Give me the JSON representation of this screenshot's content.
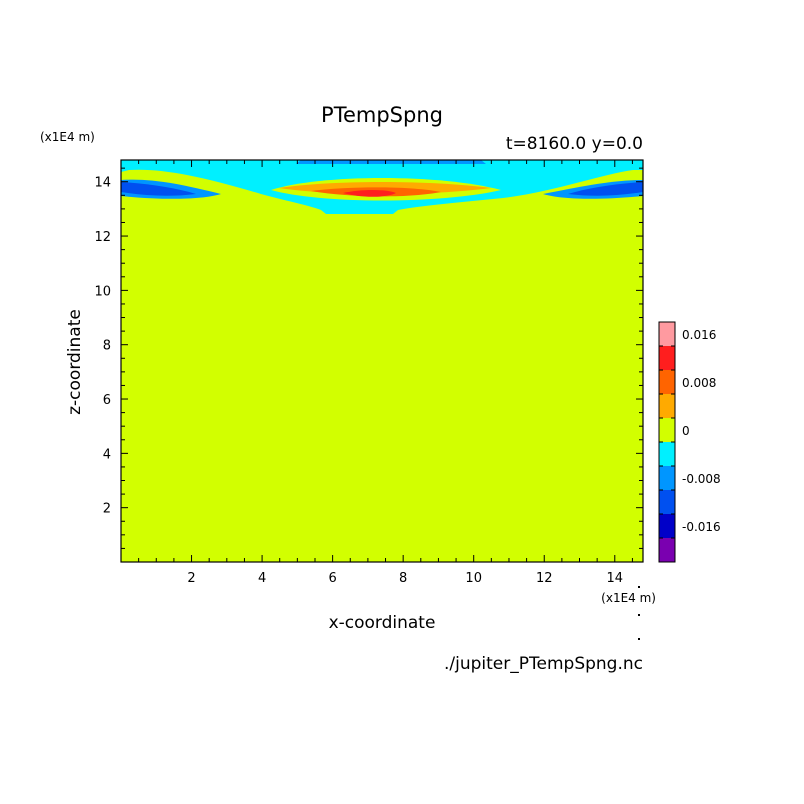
{
  "chart_data": {
    "type": "heatmap",
    "title": "PTempSpng",
    "subtitle": "t=8160.0 y=0.0",
    "xlabel": "x-coordinate",
    "ylabel": "z-coordinate",
    "x_unit": "(x1E4 m)",
    "y_unit": "(x1E4 m)",
    "source": "./jupiter_PTempSpng.nc",
    "xlim": [
      0,
      14.8
    ],
    "ylim": [
      0,
      14.8
    ],
    "x_ticks": [
      2,
      4,
      6,
      8,
      10,
      12,
      14
    ],
    "y_ticks": [
      2,
      4,
      6,
      8,
      10,
      12,
      14
    ],
    "colorbar": {
      "levels": [
        -0.02,
        -0.016,
        -0.012,
        -0.008,
        -0.004,
        0,
        0.004,
        0.008,
        0.012,
        0.016,
        0.02
      ],
      "colors": [
        "#7a00b0",
        "#0000c8",
        "#0050f0",
        "#0096ff",
        "#00f0ff",
        "#d2ff00",
        "#ffaa00",
        "#ff6400",
        "#ff1e1e",
        "#ff9aa0"
      ],
      "tick_values": [
        0.016,
        0.008,
        0,
        -0.008,
        -0.016
      ],
      "tick_labels": [
        "0.016",
        "0.008",
        "0",
        "-0.008",
        "-0.016"
      ]
    },
    "field": {
      "background_value": 0.0,
      "features": [
        {
          "name": "sponge-layer-band",
          "x_range": [
            0,
            14.8
          ],
          "z_range": [
            13.0,
            14.8
          ],
          "min": -0.014,
          "max": 0.012
        },
        {
          "name": "positive-anomaly-center",
          "x": 7.6,
          "z": 13.7,
          "value": 0.012
        },
        {
          "name": "negative-anomaly-left",
          "x": 1.2,
          "z": 13.8,
          "value": -0.01
        },
        {
          "name": "negative-anomaly-right",
          "x": 14.0,
          "z": 13.8,
          "value": -0.01
        }
      ]
    }
  }
}
